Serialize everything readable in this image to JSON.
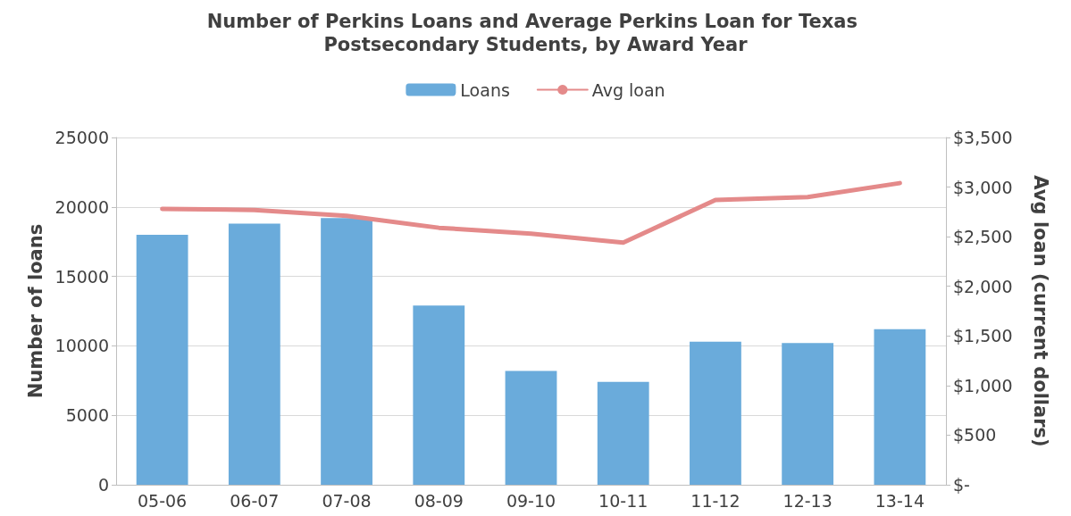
{
  "chart_data": {
    "type": "bar",
    "title": "Number of Perkins Loans and Average Perkins Loan for Texas Postsecondary Students, by Award Year",
    "categories": [
      "05-06",
      "06-07",
      "07-08",
      "08-09",
      "09-10",
      "10-11",
      "11-12",
      "12-13",
      "13-14"
    ],
    "series": [
      {
        "name": "Loans",
        "color": "#6aabdb",
        "values": [
          18000,
          18800,
          19200,
          12900,
          8200,
          7400,
          10300,
          10200,
          11200
        ]
      },
      {
        "name": "Avg loan",
        "type": "line",
        "axis": "y2",
        "color": "#e48a8a",
        "values": [
          2780,
          2770,
          2710,
          2590,
          2530,
          2440,
          2870,
          2900,
          3040
        ]
      }
    ],
    "ylabel": "Number of loans",
    "y2label": "Avg loan (current dollars)",
    "ylim": [
      0,
      25000
    ],
    "yticks": [
      0,
      5000,
      10000,
      15000,
      20000,
      25000
    ],
    "y2lim": [
      0,
      3500
    ],
    "y2ticks": [
      {
        "value": 0,
        "label": "$-"
      },
      {
        "value": 500,
        "label": "$500"
      },
      {
        "value": 1000,
        "label": "$1,000"
      },
      {
        "value": 1500,
        "label": "$1,500"
      },
      {
        "value": 2000,
        "label": "$2,000"
      },
      {
        "value": 2500,
        "label": "$2,500"
      },
      {
        "value": 3000,
        "label": "$3,000"
      },
      {
        "value": 3500,
        "label": "$3,500"
      }
    ],
    "grid": "y",
    "legend": "top",
    "marker": "none",
    "line_style": "solid"
  }
}
